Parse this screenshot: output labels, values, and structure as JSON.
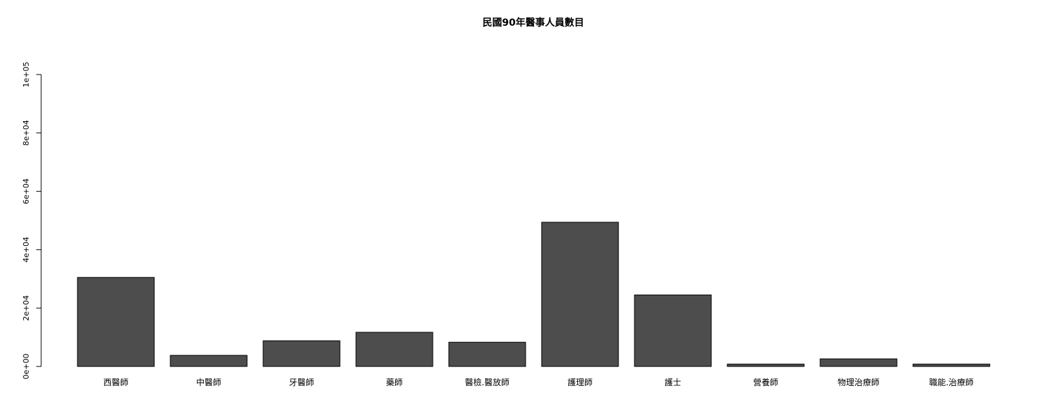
{
  "chart_data": {
    "type": "bar",
    "title": "民國90年醫事人員數目",
    "xlabel": "",
    "ylabel": "",
    "categories": [
      "西醫師",
      "中醫師",
      "牙醫師",
      "藥師",
      "醫檢.醫放師",
      "護理師",
      "護士",
      "營養師",
      "物理治療師",
      "職能.治療師"
    ],
    "values": [
      30500,
      3800,
      8800,
      11700,
      8300,
      49400,
      24500,
      800,
      2600,
      800
    ],
    "ylim": [
      0,
      100000
    ],
    "yticks": [
      0,
      20000,
      40000,
      60000,
      80000,
      100000
    ],
    "ytick_labels": [
      "0e+00",
      "2e+04",
      "4e+04",
      "6e+04",
      "8e+04",
      "1e+05"
    ],
    "grid": false,
    "legend": "none",
    "bar_color": "#4d4d4d",
    "bar_edge_color": "#000000"
  }
}
